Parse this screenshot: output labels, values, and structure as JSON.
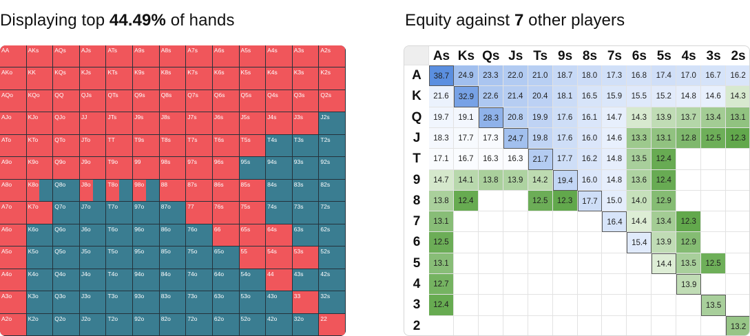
{
  "left_panel": {
    "title_prefix": "Displaying top ",
    "title_value": "44.49%",
    "title_suffix": " of hands",
    "colors": {
      "included": "#f0565b",
      "excluded": "#3a7d91"
    },
    "rows": [
      {
        "labels": [
          "AA",
          "AKs",
          "AQs",
          "AJs",
          "ATs",
          "A9s",
          "A8s",
          "A7s",
          "A6s",
          "A5s",
          "A4s",
          "A3s",
          "A2s"
        ],
        "fill": [
          1,
          1,
          1,
          1,
          1,
          1,
          1,
          1,
          1,
          1,
          1,
          1,
          1
        ]
      },
      {
        "labels": [
          "AKo",
          "KK",
          "KQs",
          "KJs",
          "KTs",
          "K9s",
          "K8s",
          "K7s",
          "K6s",
          "K5s",
          "K4s",
          "K3s",
          "K2s"
        ],
        "fill": [
          1,
          1,
          1,
          1,
          1,
          1,
          1,
          1,
          1,
          1,
          1,
          1,
          1
        ]
      },
      {
        "labels": [
          "AQo",
          "KQo",
          "QQ",
          "QJs",
          "QTs",
          "Q9s",
          "Q8s",
          "Q7s",
          "Q6s",
          "Q5s",
          "Q4s",
          "Q3s",
          "Q2s"
        ],
        "fill": [
          1,
          1,
          1,
          1,
          1,
          1,
          1,
          1,
          1,
          1,
          1,
          1,
          1
        ]
      },
      {
        "labels": [
          "AJo",
          "KJo",
          "QJo",
          "JJ",
          "JTs",
          "J9s",
          "J8s",
          "J7s",
          "J6s",
          "J5s",
          "J4s",
          "J3s",
          "J2s"
        ],
        "fill": [
          1,
          1,
          1,
          1,
          1,
          1,
          1,
          1,
          1,
          1,
          1,
          1,
          0
        ]
      },
      {
        "labels": [
          "ATo",
          "KTo",
          "QTo",
          "JTo",
          "TT",
          "T9s",
          "T8s",
          "T7s",
          "T6s",
          "T5s",
          "T4s",
          "T3s",
          "T2s"
        ],
        "fill": [
          1,
          1,
          1,
          1,
          1,
          1,
          1,
          1,
          1,
          1,
          0,
          0,
          0
        ]
      },
      {
        "labels": [
          "A9o",
          "K9o",
          "Q9o",
          "J9o",
          "T9o",
          "99",
          "98s",
          "97s",
          "96s",
          "95s",
          "94s",
          "93s",
          "92s"
        ],
        "fill": [
          1,
          1,
          1,
          1,
          1,
          1,
          1,
          1,
          1,
          0,
          0,
          0,
          0
        ]
      },
      {
        "labels": [
          "A8o",
          "K8o",
          "Q8o",
          "J8o",
          "T8o",
          "98o",
          "88",
          "87s",
          "86s",
          "85s",
          "84s",
          "83s",
          "82s"
        ],
        "fill": [
          1,
          0.5,
          0,
          0.5,
          0.5,
          0.5,
          1,
          1,
          1,
          1,
          0,
          0,
          0
        ]
      },
      {
        "labels": [
          "A7o",
          "K7o",
          "Q7o",
          "J7o",
          "T7o",
          "97o",
          "87o",
          "77",
          "76s",
          "75s",
          "74s",
          "73s",
          "72s"
        ],
        "fill": [
          1,
          1,
          0,
          0,
          0,
          0,
          0,
          1,
          1,
          1,
          0,
          0,
          0
        ]
      },
      {
        "labels": [
          "A6o",
          "K6o",
          "Q6o",
          "J6o",
          "T6o",
          "96o",
          "86o",
          "76o",
          "66",
          "65s",
          "64s",
          "63s",
          "62s"
        ],
        "fill": [
          1,
          0,
          0,
          0,
          0,
          0,
          0,
          0,
          1,
          1,
          1,
          0,
          0
        ]
      },
      {
        "labels": [
          "A5o",
          "K5o",
          "Q5o",
          "J5o",
          "T5o",
          "95o",
          "85o",
          "75o",
          "65o",
          "55",
          "54s",
          "53s",
          "52s"
        ],
        "fill": [
          1,
          0,
          0,
          0,
          0,
          0,
          0,
          0,
          0,
          1,
          1,
          1,
          0
        ]
      },
      {
        "labels": [
          "A4o",
          "K4o",
          "Q4o",
          "J4o",
          "T4o",
          "94o",
          "84o",
          "74o",
          "64o",
          "54o",
          "44",
          "43s",
          "42s"
        ],
        "fill": [
          1,
          0,
          0,
          0,
          0,
          0,
          0,
          0,
          0,
          0,
          1,
          0,
          0
        ]
      },
      {
        "labels": [
          "A3o",
          "K3o",
          "Q3o",
          "J3o",
          "T3o",
          "93o",
          "83o",
          "73o",
          "63o",
          "53o",
          "43o",
          "33",
          "32s"
        ],
        "fill": [
          1,
          0,
          0,
          0,
          0,
          0,
          0,
          0,
          0,
          0,
          0,
          1,
          0
        ]
      },
      {
        "labels": [
          "A2o",
          "K2o",
          "Q2o",
          "J2o",
          "T2o",
          "92o",
          "82o",
          "72o",
          "62o",
          "52o",
          "42o",
          "32o",
          "22"
        ],
        "fill": [
          1,
          0,
          0,
          0,
          0,
          0,
          0,
          0,
          0,
          0,
          0,
          0,
          1
        ]
      }
    ]
  },
  "right_panel": {
    "title_prefix": "Equity against ",
    "title_value": "7",
    "title_suffix": " other players",
    "col_headers": [
      "As",
      "Ks",
      "Qs",
      "Js",
      "Ts",
      "9s",
      "8s",
      "7s",
      "6s",
      "5s",
      "4s",
      "3s",
      "2s"
    ],
    "row_headers": [
      "A",
      "K",
      "Q",
      "J",
      "T",
      "9",
      "8",
      "7",
      "6",
      "5",
      "4",
      "3",
      "2"
    ],
    "values": [
      [
        "38.7",
        "24.9",
        "23.3",
        "22.0",
        "21.0",
        "18.7",
        "18.0",
        "17.3",
        "16.8",
        "17.4",
        "17.0",
        "16.7",
        "16.2"
      ],
      [
        "21.6",
        "32.9",
        "22.6",
        "21.4",
        "20.4",
        "18.1",
        "16.5",
        "15.9",
        "15.5",
        "15.2",
        "14.8",
        "14.6",
        "14.3"
      ],
      [
        "19.7",
        "19.1",
        "28.3",
        "20.8",
        "19.9",
        "17.6",
        "16.1",
        "14.7",
        "14.3",
        "13.9",
        "13.7",
        "13.4",
        "13.1"
      ],
      [
        "18.3",
        "17.7",
        "17.3",
        "24.7",
        "19.8",
        "17.6",
        "16.0",
        "14.6",
        "13.3",
        "13.1",
        "12.8",
        "12.5",
        "12.3"
      ],
      [
        "17.1",
        "16.7",
        "16.3",
        "16.3",
        "21.7",
        "17.7",
        "16.2",
        "14.8",
        "13.5",
        "12.4",
        "",
        "",
        ""
      ],
      [
        "14.7",
        "14.1",
        "13.8",
        "13.9",
        "14.2",
        "19.4",
        "16.0",
        "14.8",
        "13.6",
        "12.4",
        "",
        "",
        ""
      ],
      [
        "13.8",
        "12.4",
        "",
        "",
        "12.5",
        "12.3",
        "17.7",
        "15.0",
        "14.0",
        "12.9",
        "",
        "",
        ""
      ],
      [
        "13.1",
        "",
        "",
        "",
        "",
        "",
        "",
        "16.4",
        "14.4",
        "13.4",
        "12.3",
        "",
        ""
      ],
      [
        "12.5",
        "",
        "",
        "",
        "",
        "",
        "",
        "",
        "15.4",
        "13.9",
        "12.9",
        "",
        ""
      ],
      [
        "13.1",
        "",
        "",
        "",
        "",
        "",
        "",
        "",
        "",
        "14.4",
        "13.5",
        "12.5",
        ""
      ],
      [
        "12.7",
        "",
        "",
        "",
        "",
        "",
        "",
        "",
        "",
        "",
        "13.9",
        "",
        ""
      ],
      [
        "12.4",
        "",
        "",
        "",
        "",
        "",
        "",
        "",
        "",
        "",
        "",
        "13.5",
        ""
      ],
      [
        "",
        "",
        "",
        "",
        "",
        "",
        "",
        "",
        "",
        "",
        "",
        "",
        "13.2"
      ]
    ],
    "colors": {
      "header_bg": "#eeeeee",
      "grid_line": "#e2e2e2",
      "high_blue": "#5b8fe0",
      "low_blue": "#eaf1fd",
      "low_green": "#e3f0dc",
      "high_green": "#62a84c"
    }
  }
}
